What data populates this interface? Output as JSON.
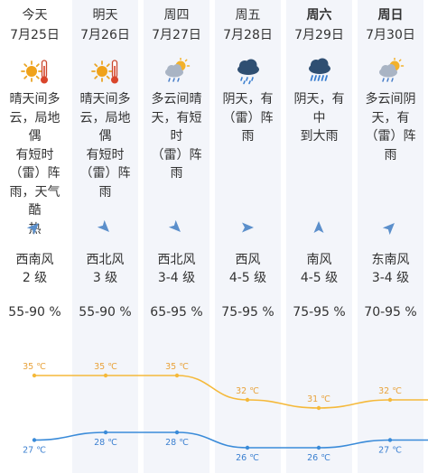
{
  "colors": {
    "high_line": "#f5b93a",
    "low_line": "#3a8bd9",
    "high_text": "#e8a23a",
    "low_text": "#3a7fd0",
    "arrow": "#5b8fcb"
  },
  "forecast": [
    {
      "day": "今天",
      "date": "7月25日",
      "icon": "sun-thermometer-icon",
      "desc": [
        "晴天间多",
        "云，局地偶",
        "有短时",
        "（雷）阵",
        "雨，天气酷",
        "热"
      ],
      "wind_dir_deg": 45,
      "wind": "西南风",
      "level": "2 级",
      "humidity": "55-90 %",
      "high": 35,
      "high_label": "35 ℃",
      "low": 27,
      "low_label": "27 ℃",
      "weekend": false
    },
    {
      "day": "明天",
      "date": "7月26日",
      "icon": "sun-thermometer-icon",
      "desc": [
        "晴天间多",
        "云，局地偶",
        "有短时",
        "（雷）阵雨"
      ],
      "wind_dir_deg": 135,
      "wind": "西北风",
      "level": "3 级",
      "humidity": "55-90 %",
      "high": 35,
      "high_label": "35 ℃",
      "low": 28,
      "low_label": "28 ℃",
      "weekend": false
    },
    {
      "day": "周四",
      "date": "7月27日",
      "icon": "sun-cloud-rain-icon",
      "desc": [
        "多云间晴",
        "天，有短时",
        "（雷）阵雨"
      ],
      "wind_dir_deg": 135,
      "wind": "西北风",
      "level": "3-4 级",
      "humidity": "65-95 %",
      "high": 35,
      "high_label": "35 ℃",
      "low": 28,
      "low_label": "28 ℃",
      "weekend": false
    },
    {
      "day": "周五",
      "date": "7月28日",
      "icon": "cloud-rain-icon",
      "desc": [
        "阴天，有",
        "（雷）阵雨"
      ],
      "wind_dir_deg": 90,
      "wind": "西风",
      "level": "4-5 级",
      "humidity": "75-95 %",
      "high": 32,
      "high_label": "32 ℃",
      "low": 26,
      "low_label": "26 ℃",
      "weekend": false
    },
    {
      "day": "周六",
      "date": "7月29日",
      "icon": "cloud-heavy-rain-icon",
      "desc": [
        "阴天，有中",
        "到大雨"
      ],
      "wind_dir_deg": 0,
      "wind": "南风",
      "level": "4-5 级",
      "humidity": "75-95 %",
      "high": 31,
      "high_label": "31 ℃",
      "low": 26,
      "low_label": "26 ℃",
      "weekend": true
    },
    {
      "day": "周日",
      "date": "7月30日",
      "icon": "sun-cloud-rain-icon",
      "desc": [
        "多云间阴",
        "天，有",
        "（雷）阵雨"
      ],
      "wind_dir_deg": 45,
      "wind": "东南风",
      "level": "3-4 级",
      "humidity": "70-95 %",
      "high": 32,
      "high_label": "32 ℃",
      "low": 27,
      "low_label": "27 ℃",
      "weekend": true
    }
  ]
}
